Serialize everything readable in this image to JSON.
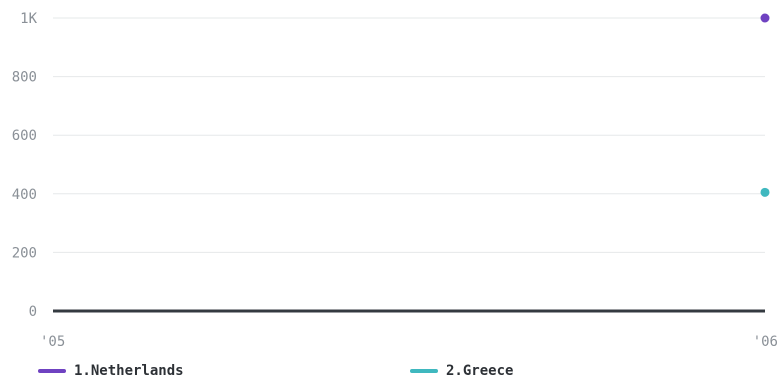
{
  "chart_data": {
    "type": "scatter",
    "x_categories": [
      "'05",
      "'06"
    ],
    "y_ticks": [
      {
        "value": 0,
        "label": "0"
      },
      {
        "value": 200,
        "label": "200"
      },
      {
        "value": 400,
        "label": "400"
      },
      {
        "value": 600,
        "label": "600"
      },
      {
        "value": 800,
        "label": "800"
      },
      {
        "value": 1000,
        "label": "1K"
      }
    ],
    "ylim": [
      0,
      1000
    ],
    "grid": true,
    "legend_position": "bottom",
    "series": [
      {
        "name": "1.Netherlands",
        "color": "#6f42c1",
        "points": [
          {
            "x": "'06",
            "y": 1000
          }
        ]
      },
      {
        "name": "2.Greece",
        "color": "#3fb8bf",
        "points": [
          {
            "x": "'06",
            "y": 405
          }
        ]
      }
    ]
  }
}
